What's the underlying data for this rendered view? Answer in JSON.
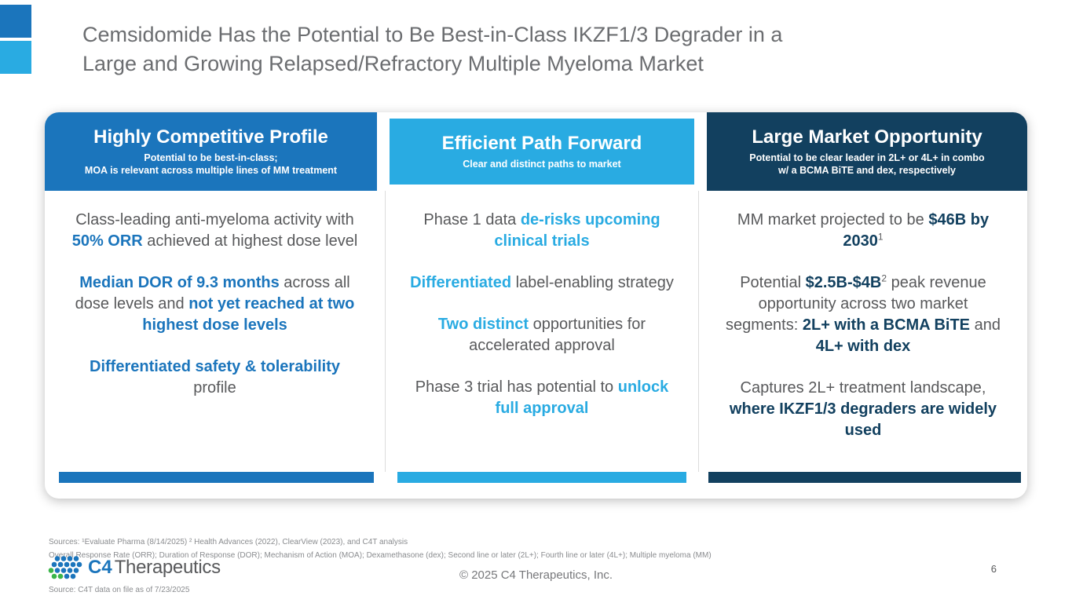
{
  "title": {
    "line1": "Cemsidomide Has the Potential to Be Best-in-Class IKZF1/3 Degrader in a",
    "line2": "Large and Growing Relapsed/Refractory Multiple Myeloma Market"
  },
  "colors": {
    "primary_blue": "#1B75BC",
    "cyan": "#29ABE2",
    "navy": "#12405F",
    "green": "#3AB54A",
    "body_gray": "#58595B",
    "title_gray": "#6B6D70"
  },
  "columns": [
    {
      "accent": "#1B75BC",
      "header": "Highly Competitive Profile",
      "subtitle_lines": [
        "Potential to be best-in-class;",
        "MOA is relevant across multiple lines of MM treatment"
      ],
      "paragraphs": [
        [
          {
            "t": "Class-leading anti-myeloma activity with "
          },
          {
            "t": "50% ORR",
            "b": true
          },
          {
            "t": " achieved at highest dose level"
          }
        ],
        [
          {
            "t": "Median DOR of 9.3 months",
            "b": true
          },
          {
            "t": " across all dose levels and "
          },
          {
            "t": "not yet reached at two highest dose levels",
            "b": true
          }
        ],
        [
          {
            "t": "Differentiated safety & tolerability",
            "b": true
          },
          {
            "t": " profile"
          }
        ]
      ]
    },
    {
      "accent": "#29ABE2",
      "header": "Efficient Path Forward",
      "subtitle_lines": [
        "Clear and distinct paths to market"
      ],
      "paragraphs": [
        [
          {
            "t": "Phase 1 data "
          },
          {
            "t": "de-risks upcoming clinical trials",
            "b": true
          }
        ],
        [
          {
            "t": "Differentiated",
            "b": true
          },
          {
            "t": " label-enabling strategy"
          }
        ],
        [
          {
            "t": "Two distinct",
            "b": true
          },
          {
            "t": " opportunities for accelerated approval"
          }
        ],
        [
          {
            "t": "Phase 3 trial has potential to "
          },
          {
            "t": "unlock full approval",
            "b": true
          }
        ]
      ]
    },
    {
      "accent": "#12405F",
      "header": "Large Market Opportunity",
      "subtitle_lines": [
        "Potential to be clear leader in 2L+ or 4L+ in combo",
        "w/ a BCMA BiTE and dex, respectively"
      ],
      "paragraphs": [
        [
          {
            "t": "MM market projected to be "
          },
          {
            "t": "$46B by 2030",
            "b": true
          },
          {
            "t": "1",
            "sup": true
          }
        ],
        [
          {
            "t": "Potential "
          },
          {
            "t": "$2.5B-$4B",
            "b": true
          },
          {
            "t": "2",
            "sup": true
          },
          {
            "t": " peak revenue opportunity across two market segments: "
          },
          {
            "t": "2L+ with a BCMA BiTE",
            "b": true
          },
          {
            "t": " and "
          },
          {
            "t": "4L+ with dex",
            "b": true
          }
        ],
        [
          {
            "t": "Captures 2L+ treatment landscape, "
          },
          {
            "t": "where IKZF1/3 degraders are widely used",
            "b": true
          }
        ]
      ]
    }
  ],
  "footer": {
    "sources_line": "Sources: ¹Evaluate Pharma  (8/14/2025) ² Health Advances (2022), ClearView (2023), and C4T analysis",
    "abbreviations_line": "Overall Response Rate (ORR); Duration of Response (DOR); Mechanism of Action (MOA); Dexamethasone (dex); Second line or later (2L+); Fourth line or later (4L+); Multiple myeloma (MM)",
    "data_on_file_line": "Source: C4T data on file as of 7/23/2025",
    "copyright": "© 2025 C4 Therapeutics, Inc.",
    "page_number": "6",
    "logo_c4": "C4",
    "logo_therapeutics": "Therapeutics"
  }
}
